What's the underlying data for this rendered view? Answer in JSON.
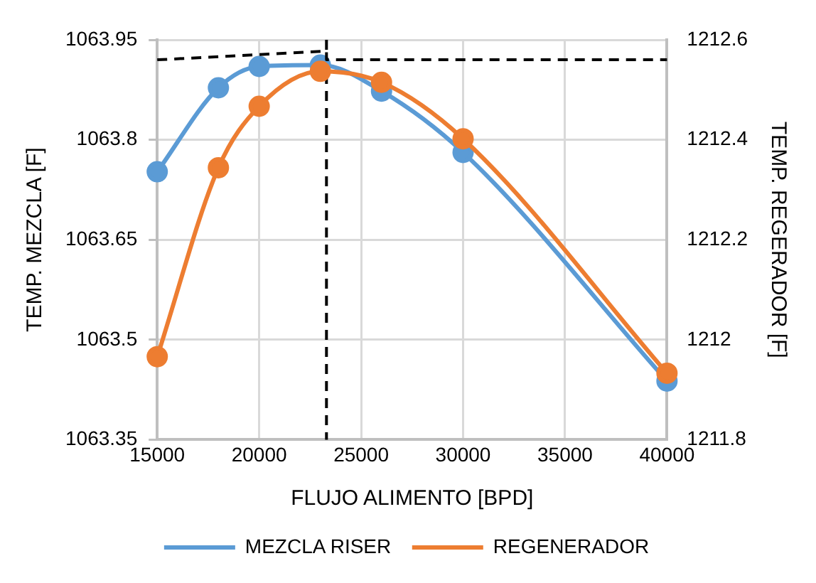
{
  "chart_data": {
    "type": "line",
    "xlabel": "FLUJO ALIMENTO [BPD]",
    "ylabel": "TEMP. MEZCLA [F]",
    "y2label": "TEMP. REGERADOR [F]",
    "x": [
      15000,
      18000,
      20000,
      23000,
      26000,
      30000,
      40000
    ],
    "series": [
      {
        "name": "MEZCLA RISER",
        "color": "#5b9bd5",
        "values": [
          1063.752,
          1063.878,
          1063.91,
          1063.912,
          1063.873,
          1063.781,
          1063.438
        ]
      },
      {
        "name": "REGENERADOR",
        "color": "#ed7d31",
        "axis": "y2",
        "values": [
          1211.966,
          1212.344,
          1212.467,
          1212.537,
          1212.515,
          1212.402,
          1211.933
        ]
      },
      {
        "color": "#000000",
        "line_style": "dashed",
        "marker": "none",
        "x": [
          15000,
          23300,
          23300,
          40000
        ],
        "values": [
          1063.92,
          1063.933,
          1063.92,
          1063.92
        ]
      }
    ],
    "ref_lines": [
      {
        "axis": "x",
        "value": 23300,
        "color": "#000000",
        "line_style": "dashed"
      }
    ],
    "xlim": [
      15000,
      40000
    ],
    "xticks": [
      15000,
      20000,
      25000,
      30000,
      35000,
      40000
    ],
    "ylim": [
      1063.35,
      1063.95
    ],
    "yticks": [
      1063.35,
      1063.5,
      1063.65,
      1063.8,
      1063.95
    ],
    "y2lim": [
      1211.8,
      1212.6
    ],
    "y2ticks": [
      1211.8,
      1212,
      1212.2,
      1212.4,
      1212.6
    ],
    "grid": true,
    "legend": "bottom",
    "marker": "circle",
    "line_style": "solid"
  }
}
